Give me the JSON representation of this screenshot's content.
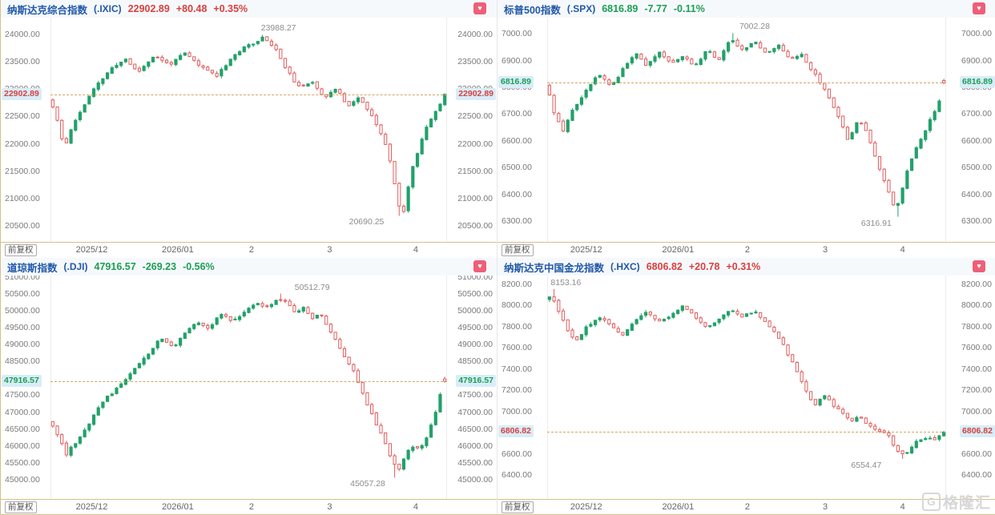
{
  "adjust_label": "前复权",
  "icons": {
    "favorite": "♥"
  },
  "watermark": {
    "logo": "G",
    "text": "格隆汇"
  },
  "colors": {
    "up": "#23a16b",
    "down": "#e15d5d",
    "title_blue": "#2158a8",
    "quote_up": "#d9403e",
    "quote_down": "#1c9e53",
    "axis_text": "#7a7a7a",
    "annotation": "#8c8c8c",
    "dash_line": "#d2a76a",
    "badge_bg": "#d8edf8",
    "axis_line": "#d8bf8a",
    "fav_bg": "#ee5f78"
  },
  "chart_data": [
    {
      "type": "candlestick",
      "name": "纳斯达克综合指数",
      "code": "(.IXIC)",
      "price": "22902.89",
      "change": "+80.48",
      "change_pct": "+0.35%",
      "direction": "up",
      "current": 22902.89,
      "y_top": 24300,
      "y_bottom": 20200,
      "ylim": [
        20200,
        24300
      ],
      "ticks": [
        {
          "v": 24000,
          "label": "24000.00"
        },
        {
          "v": 23500,
          "label": "23500.00"
        },
        {
          "v": 23000,
          "label": "23000.00"
        },
        {
          "v": 22500,
          "label": "22500.00"
        },
        {
          "v": 22000,
          "label": "22000.00"
        },
        {
          "v": 21500,
          "label": "21500.00"
        },
        {
          "v": 21000,
          "label": "21000.00"
        },
        {
          "v": 20500,
          "label": "20500.00"
        }
      ],
      "x_labels": [
        {
          "t": 0.104,
          "label": "2025/12"
        },
        {
          "t": 0.321,
          "label": "2026/01"
        },
        {
          "t": 0.507,
          "label": "2"
        },
        {
          "t": 0.704,
          "label": "3"
        },
        {
          "t": 0.921,
          "label": "4"
        }
      ],
      "high": {
        "value": 23988.27,
        "label": "23988.27",
        "t": 0.54,
        "label_t": 0.575
      },
      "low": {
        "value": 20690.25,
        "label": "20690.25",
        "t": 0.884,
        "label_t": 0.797
      },
      "candles": 87,
      "seed": 11,
      "trend_points": [
        [
          0,
          22800
        ],
        [
          0.02,
          22350
        ],
        [
          0.035,
          21900
        ],
        [
          0.05,
          22250
        ],
        [
          0.08,
          22650
        ],
        [
          0.11,
          23000
        ],
        [
          0.15,
          23350
        ],
        [
          0.19,
          23550
        ],
        [
          0.22,
          23300
        ],
        [
          0.26,
          23600
        ],
        [
          0.3,
          23450
        ],
        [
          0.34,
          23650
        ],
        [
          0.38,
          23400
        ],
        [
          0.42,
          23250
        ],
        [
          0.46,
          23600
        ],
        [
          0.5,
          23800
        ],
        [
          0.54,
          23950
        ],
        [
          0.57,
          23700
        ],
        [
          0.6,
          23300
        ],
        [
          0.63,
          23000
        ],
        [
          0.66,
          23150
        ],
        [
          0.69,
          22850
        ],
        [
          0.72,
          23000
        ],
        [
          0.75,
          22700
        ],
        [
          0.78,
          22850
        ],
        [
          0.81,
          22500
        ],
        [
          0.84,
          22100
        ],
        [
          0.86,
          21600
        ],
        [
          0.875,
          20950
        ],
        [
          0.89,
          20750
        ],
        [
          0.91,
          21500
        ],
        [
          0.93,
          21950
        ],
        [
          0.95,
          22350
        ],
        [
          0.97,
          22600
        ],
        [
          1,
          22903
        ]
      ]
    },
    {
      "type": "candlestick",
      "name": "标普500指数",
      "code": "(.SPX)",
      "price": "6816.89",
      "change": "-7.77",
      "change_pct": "-0.11%",
      "direction": "down",
      "current": 6816.89,
      "y_top": 7060,
      "y_bottom": 6220,
      "ylim": [
        6220,
        7060
      ],
      "ticks": [
        {
          "v": 7000,
          "label": "7000.00"
        },
        {
          "v": 6900,
          "label": "6900.00"
        },
        {
          "v": 6800,
          "label": "6800.00"
        },
        {
          "v": 6700,
          "label": "6700.00"
        },
        {
          "v": 6600,
          "label": "6600.00"
        },
        {
          "v": 6500,
          "label": "6500.00"
        },
        {
          "v": 6400,
          "label": "6400.00"
        },
        {
          "v": 6300,
          "label": "6300.00"
        }
      ],
      "x_labels": [
        {
          "t": 0.098,
          "label": "2025/12"
        },
        {
          "t": 0.328,
          "label": "2026/01"
        },
        {
          "t": 0.502,
          "label": "2"
        },
        {
          "t": 0.697,
          "label": "3"
        },
        {
          "t": 0.891,
          "label": "4"
        }
      ],
      "high": {
        "value": 7002.28,
        "label": "7002.28",
        "t": 0.47,
        "label_t": 0.52
      },
      "low": {
        "value": 6316.91,
        "label": "6316.91",
        "t": 0.885,
        "label_t": 0.825
      },
      "candles": 87,
      "seed": 23,
      "trend_points": [
        [
          0,
          6810
        ],
        [
          0.02,
          6690
        ],
        [
          0.04,
          6640
        ],
        [
          0.07,
          6730
        ],
        [
          0.1,
          6790
        ],
        [
          0.13,
          6850
        ],
        [
          0.16,
          6800
        ],
        [
          0.19,
          6870
        ],
        [
          0.22,
          6930
        ],
        [
          0.25,
          6880
        ],
        [
          0.28,
          6930
        ],
        [
          0.31,
          6890
        ],
        [
          0.34,
          6920
        ],
        [
          0.37,
          6880
        ],
        [
          0.4,
          6940
        ],
        [
          0.43,
          6900
        ],
        [
          0.46,
          6980
        ],
        [
          0.49,
          6940
        ],
        [
          0.52,
          6970
        ],
        [
          0.55,
          6920
        ],
        [
          0.58,
          6960
        ],
        [
          0.61,
          6900
        ],
        [
          0.64,
          6920
        ],
        [
          0.67,
          6850
        ],
        [
          0.7,
          6780
        ],
        [
          0.73,
          6690
        ],
        [
          0.755,
          6600
        ],
        [
          0.78,
          6680
        ],
        [
          0.8,
          6640
        ],
        [
          0.82,
          6550
        ],
        [
          0.85,
          6430
        ],
        [
          0.875,
          6340
        ],
        [
          0.9,
          6480
        ],
        [
          0.92,
          6560
        ],
        [
          0.94,
          6610
        ],
        [
          0.96,
          6680
        ],
        [
          0.98,
          6740
        ],
        [
          1,
          6817
        ]
      ]
    },
    {
      "type": "candlestick",
      "name": "道琼斯指数",
      "code": "(.DJI)",
      "price": "47916.57",
      "change": "-269.23",
      "change_pct": "-0.56%",
      "direction": "down",
      "current": 47916.57,
      "y_top": 51050,
      "y_bottom": 44400,
      "ylim": [
        44400,
        51050
      ],
      "ticks": [
        {
          "v": 51000,
          "label": "51000.00"
        },
        {
          "v": 50500,
          "label": "50500.00"
        },
        {
          "v": 50000,
          "label": "50000.00"
        },
        {
          "v": 49500,
          "label": "49500.00"
        },
        {
          "v": 49000,
          "label": "49000.00"
        },
        {
          "v": 48500,
          "label": "48500.00"
        },
        {
          "v": 48000,
          "label": "48000.00"
        },
        {
          "v": 47500,
          "label": "47500.00"
        },
        {
          "v": 47000,
          "label": "47000.00"
        },
        {
          "v": 46500,
          "label": "46500.00"
        },
        {
          "v": 46000,
          "label": "46000.00"
        },
        {
          "v": 45500,
          "label": "45500.00"
        },
        {
          "v": 45000,
          "label": "45000.00"
        }
      ],
      "x_labels": [
        {
          "t": 0.104,
          "label": "2025/12"
        },
        {
          "t": 0.321,
          "label": "2026/01"
        },
        {
          "t": 0.507,
          "label": "2"
        },
        {
          "t": 0.704,
          "label": "3"
        },
        {
          "t": 0.921,
          "label": "4"
        }
      ],
      "high": {
        "value": 50512.79,
        "label": "50512.79",
        "t": 0.575,
        "label_t": 0.66
      },
      "low": {
        "value": 45057.28,
        "label": "45057.28",
        "t": 0.87,
        "label_t": 0.8
      },
      "candles": 87,
      "seed": 37,
      "trend_points": [
        [
          0,
          46700
        ],
        [
          0.02,
          46300
        ],
        [
          0.04,
          45750
        ],
        [
          0.07,
          46200
        ],
        [
          0.1,
          46700
        ],
        [
          0.13,
          47300
        ],
        [
          0.16,
          47600
        ],
        [
          0.19,
          48000
        ],
        [
          0.22,
          48400
        ],
        [
          0.25,
          48800
        ],
        [
          0.28,
          49200
        ],
        [
          0.31,
          48900
        ],
        [
          0.34,
          49400
        ],
        [
          0.37,
          49700
        ],
        [
          0.4,
          49500
        ],
        [
          0.43,
          49900
        ],
        [
          0.46,
          49700
        ],
        [
          0.49,
          50000
        ],
        [
          0.52,
          50200
        ],
        [
          0.55,
          50100
        ],
        [
          0.575,
          50400
        ],
        [
          0.6,
          50200
        ],
        [
          0.62,
          49900
        ],
        [
          0.64,
          50100
        ],
        [
          0.66,
          49800
        ],
        [
          0.68,
          49950
        ],
        [
          0.7,
          49500
        ],
        [
          0.72,
          49100
        ],
        [
          0.74,
          48700
        ],
        [
          0.76,
          48300
        ],
        [
          0.78,
          47800
        ],
        [
          0.8,
          47200
        ],
        [
          0.82,
          46700
        ],
        [
          0.84,
          46200
        ],
        [
          0.86,
          45600
        ],
        [
          0.875,
          45250
        ],
        [
          0.89,
          45600
        ],
        [
          0.91,
          46000
        ],
        [
          0.93,
          45900
        ],
        [
          0.95,
          46300
        ],
        [
          0.97,
          46900
        ],
        [
          0.985,
          47600
        ],
        [
          1,
          47917
        ]
      ]
    },
    {
      "type": "candlestick",
      "name": "纳斯达克中国金龙指数",
      "code": "(.HXC)",
      "price": "6806.82",
      "change": "+20.78",
      "change_pct": "+0.31%",
      "direction": "up",
      "current": 6806.82,
      "y_top": 8280,
      "y_bottom": 6170,
      "ylim": [
        6170,
        8280
      ],
      "ticks": [
        {
          "v": 8200,
          "label": "8200.00"
        },
        {
          "v": 8000,
          "label": "8000.00"
        },
        {
          "v": 7800,
          "label": "7800.00"
        },
        {
          "v": 7600,
          "label": "7600.00"
        },
        {
          "v": 7400,
          "label": "7400.00"
        },
        {
          "v": 7200,
          "label": "7200.00"
        },
        {
          "v": 7000,
          "label": "7000.00"
        },
        {
          "v": 6800,
          "label": "6800.00"
        },
        {
          "v": 6600,
          "label": "6600.00"
        },
        {
          "v": 6400,
          "label": "6400.00"
        }
      ],
      "x_labels": [
        {
          "t": 0.098,
          "label": "2025/12"
        },
        {
          "t": 0.328,
          "label": "2026/01"
        },
        {
          "t": 0.502,
          "label": "2"
        },
        {
          "t": 0.697,
          "label": "3"
        },
        {
          "t": 0.891,
          "label": "4"
        }
      ],
      "high": {
        "value": 8153.16,
        "label": "8153.16",
        "t": 0.012,
        "label_t": 0.047
      },
      "low": {
        "value": 6554.47,
        "label": "6554.47",
        "t": 0.895,
        "label_t": 0.8
      },
      "candles": 87,
      "seed": 53,
      "trend_points": [
        [
          0,
          8050
        ],
        [
          0.01,
          8120
        ],
        [
          0.03,
          7930
        ],
        [
          0.05,
          7780
        ],
        [
          0.07,
          7660
        ],
        [
          0.1,
          7800
        ],
        [
          0.13,
          7900
        ],
        [
          0.16,
          7800
        ],
        [
          0.19,
          7710
        ],
        [
          0.22,
          7860
        ],
        [
          0.25,
          7950
        ],
        [
          0.28,
          7850
        ],
        [
          0.31,
          7910
        ],
        [
          0.34,
          8000
        ],
        [
          0.37,
          7890
        ],
        [
          0.4,
          7800
        ],
        [
          0.43,
          7860
        ],
        [
          0.46,
          7950
        ],
        [
          0.49,
          7890
        ],
        [
          0.52,
          7950
        ],
        [
          0.55,
          7820
        ],
        [
          0.58,
          7700
        ],
        [
          0.61,
          7500
        ],
        [
          0.64,
          7260
        ],
        [
          0.67,
          7060
        ],
        [
          0.7,
          7160
        ],
        [
          0.72,
          7050
        ],
        [
          0.74,
          6980
        ],
        [
          0.76,
          6900
        ],
        [
          0.78,
          6960
        ],
        [
          0.8,
          6880
        ],
        [
          0.82,
          6840
        ],
        [
          0.85,
          6800
        ],
        [
          0.875,
          6650
        ],
        [
          0.895,
          6580
        ],
        [
          0.92,
          6700
        ],
        [
          0.95,
          6760
        ],
        [
          0.97,
          6730
        ],
        [
          1,
          6807
        ]
      ]
    }
  ]
}
